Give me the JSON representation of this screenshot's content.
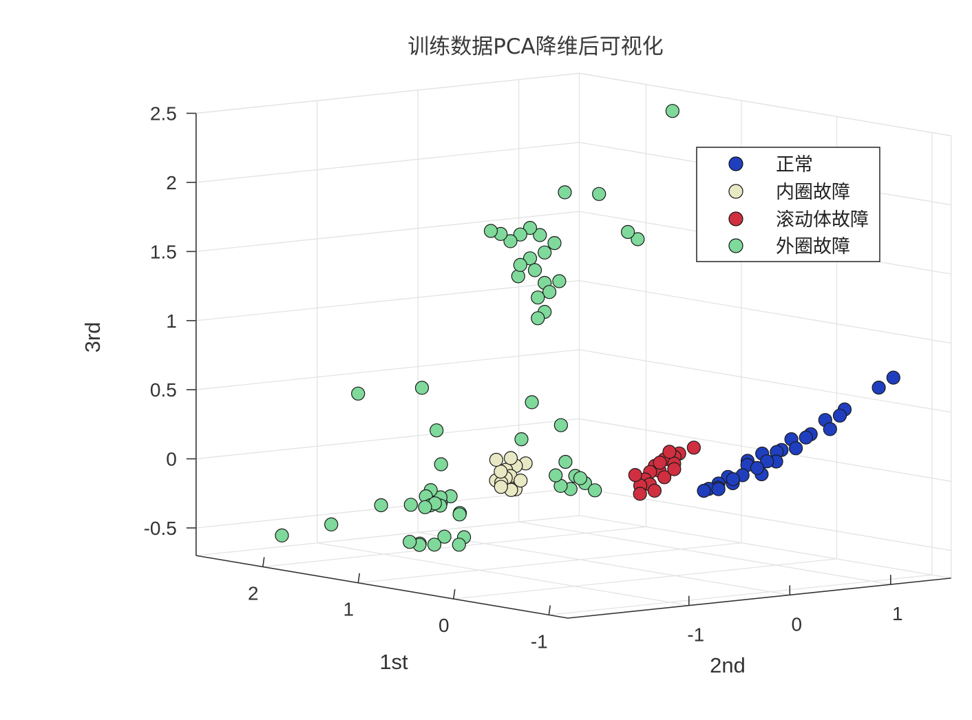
{
  "chart_data": {
    "type": "scatter",
    "subtype": "3d-scatter",
    "title": "训练数据PCA降维后可视化",
    "xlabel": "1st",
    "ylabel": "2nd",
    "zlabel": "3rd",
    "xlim": [
      -1.2,
      2.7
    ],
    "ylim": [
      -2.2,
      1.6
    ],
    "zlim": [
      -0.7,
      2.5
    ],
    "x_ticks": [
      "-1",
      "0",
      "1",
      "2"
    ],
    "y_ticks": [
      "-1",
      "0",
      "1"
    ],
    "z_ticks": [
      "-0.5",
      "0",
      "0.5",
      "1",
      "1.5",
      "2",
      "2.5"
    ],
    "grid": true,
    "legend_position": "top-right",
    "series": [
      {
        "name": "正常",
        "color": "#1f3fbf",
        "points": [
          [
            -0.7,
            1.5,
            0.7
          ],
          [
            -0.6,
            1.45,
            0.62
          ],
          [
            -0.4,
            1.3,
            0.45
          ],
          [
            -0.35,
            1.3,
            0.4
          ],
          [
            -0.25,
            1.25,
            0.36
          ],
          [
            -0.3,
            1.25,
            0.3
          ],
          [
            -0.15,
            1.2,
            0.25
          ],
          [
            -0.1,
            1.2,
            0.22
          ],
          [
            0.0,
            1.15,
            0.2
          ],
          [
            -0.1,
            1.1,
            0.15
          ],
          [
            0.05,
            1.1,
            0.12
          ],
          [
            0.1,
            1.1,
            0.1
          ],
          [
            0.2,
            1.05,
            0.08
          ],
          [
            0.0,
            1.0,
            0.05
          ],
          [
            0.15,
            1.05,
            0.03
          ],
          [
            0.3,
            1.0,
            0.02
          ],
          [
            0.25,
            0.95,
            0.0
          ],
          [
            0.1,
            0.95,
            -0.05
          ],
          [
            0.3,
            0.95,
            -0.08
          ],
          [
            0.4,
            0.9,
            -0.1
          ],
          [
            0.35,
            0.9,
            -0.14
          ],
          [
            0.5,
            0.9,
            -0.16
          ],
          [
            0.45,
            0.85,
            -0.18
          ],
          [
            0.55,
            0.85,
            -0.2
          ],
          [
            0.2,
            1.0,
            -0.02
          ],
          [
            0.6,
            0.85,
            -0.22
          ],
          [
            0.4,
            0.95,
            -0.12
          ],
          [
            0.5,
            0.9,
            -0.2
          ]
        ]
      },
      {
        "name": "内圈故障",
        "color": "#e9e8c4",
        "points": [
          [
            1.2,
            -0.35,
            0.0
          ],
          [
            1.25,
            -0.4,
            -0.02
          ],
          [
            1.3,
            -0.45,
            -0.05
          ],
          [
            1.2,
            -0.5,
            -0.08
          ],
          [
            1.25,
            -0.5,
            -0.1
          ],
          [
            1.3,
            -0.55,
            -0.12
          ],
          [
            1.35,
            -0.45,
            -0.15
          ],
          [
            1.2,
            -0.45,
            -0.18
          ],
          [
            1.3,
            -0.4,
            -0.2
          ],
          [
            1.25,
            -0.55,
            -0.05
          ],
          [
            1.35,
            -0.5,
            0.02
          ],
          [
            1.2,
            -0.4,
            -0.12
          ],
          [
            1.3,
            -0.5,
            -0.17
          ],
          [
            1.25,
            -0.45,
            0.04
          ]
        ]
      },
      {
        "name": "滚动体故障",
        "color": "#cf2f3f",
        "points": [
          [
            0.6,
            0.75,
            0.1
          ],
          [
            0.7,
            0.7,
            0.05
          ],
          [
            0.75,
            0.7,
            0.02
          ],
          [
            0.8,
            0.65,
            0.0
          ],
          [
            0.7,
            0.65,
            -0.02
          ],
          [
            0.85,
            0.6,
            -0.05
          ],
          [
            0.8,
            0.6,
            -0.08
          ],
          [
            0.9,
            0.6,
            -0.1
          ],
          [
            0.75,
            0.6,
            -0.12
          ],
          [
            0.9,
            0.55,
            -0.15
          ],
          [
            0.85,
            0.55,
            -0.18
          ],
          [
            0.95,
            0.55,
            -0.2
          ],
          [
            0.8,
            0.55,
            -0.22
          ],
          [
            0.9,
            0.5,
            -0.25
          ],
          [
            0.7,
            0.65,
            -0.06
          ],
          [
            0.95,
            0.5,
            -0.12
          ],
          [
            0.85,
            0.65,
            -0.03
          ],
          [
            0.75,
            0.65,
            0.06
          ]
        ]
      },
      {
        "name": "外圈故障",
        "color": "#7fd99b",
        "points": [
          [
            1.3,
            1.2,
            2.42
          ],
          [
            1.7,
            0.85,
            1.8
          ],
          [
            1.9,
            0.7,
            1.8
          ],
          [
            1.4,
            0.95,
            1.5
          ],
          [
            1.45,
            0.9,
            1.55
          ],
          [
            1.85,
            0.55,
            1.45
          ],
          [
            1.95,
            0.5,
            1.5
          ],
          [
            2.0,
            0.45,
            1.55
          ],
          [
            2.05,
            0.4,
            1.5
          ],
          [
            2.1,
            0.35,
            1.45
          ],
          [
            2.15,
            0.3,
            1.5
          ],
          [
            2.2,
            0.25,
            1.52
          ],
          [
            1.9,
            0.5,
            1.38
          ],
          [
            2.0,
            0.45,
            1.33
          ],
          [
            1.95,
            0.45,
            1.25
          ],
          [
            2.05,
            0.38,
            1.2
          ],
          [
            1.9,
            0.5,
            1.16
          ],
          [
            1.85,
            0.5,
            1.1
          ],
          [
            1.95,
            0.48,
            1.05
          ],
          [
            2.05,
            0.4,
            1.28
          ],
          [
            1.8,
            0.55,
            1.18
          ],
          [
            1.9,
            0.5,
            0.95
          ],
          [
            1.95,
            0.48,
            0.9
          ],
          [
            1.2,
            0.0,
            0.25
          ],
          [
            1.4,
            -0.1,
            0.4
          ],
          [
            1.35,
            -0.25,
            0.15
          ],
          [
            1.1,
            -0.05,
            0.0
          ],
          [
            1.05,
            0.0,
            -0.1
          ],
          [
            1.0,
            0.05,
            -0.15
          ],
          [
            1.1,
            0.0,
            -0.2
          ],
          [
            1.15,
            -0.05,
            -0.18
          ],
          [
            0.95,
            0.1,
            -0.2
          ],
          [
            1.05,
            0.05,
            -0.12
          ],
          [
            1.15,
            -0.1,
            -0.1
          ],
          [
            1.6,
            -1.0,
            0.55
          ],
          [
            1.9,
            -1.35,
            0.5
          ],
          [
            1.5,
            -0.95,
            0.25
          ],
          [
            1.4,
            -1.0,
            0.02
          ],
          [
            1.3,
            -1.0,
            -0.2
          ],
          [
            1.35,
            -1.05,
            -0.25
          ],
          [
            1.3,
            -1.1,
            -0.2
          ],
          [
            1.35,
            -1.15,
            -0.15
          ],
          [
            1.4,
            -1.15,
            -0.2
          ],
          [
            1.25,
            -1.15,
            -0.25
          ],
          [
            1.3,
            -1.2,
            -0.25
          ],
          [
            1.2,
            -1.25,
            -0.22
          ],
          [
            1.25,
            -1.3,
            -0.25
          ],
          [
            1.15,
            -1.05,
            -0.3
          ],
          [
            1.1,
            -1.1,
            -0.3
          ],
          [
            1.4,
            -1.3,
            -0.25
          ],
          [
            1.0,
            -1.15,
            -0.45
          ],
          [
            1.0,
            -1.2,
            -0.5
          ],
          [
            1.1,
            -1.25,
            -0.45
          ],
          [
            1.1,
            -1.35,
            -0.5
          ],
          [
            1.2,
            -1.4,
            -0.5
          ],
          [
            1.15,
            -1.45,
            -0.5
          ],
          [
            1.2,
            -1.5,
            -0.48
          ],
          [
            1.5,
            -1.5,
            -0.25
          ],
          [
            1.6,
            -1.9,
            -0.37
          ],
          [
            1.8,
            -2.2,
            -0.45
          ]
        ]
      }
    ]
  }
}
